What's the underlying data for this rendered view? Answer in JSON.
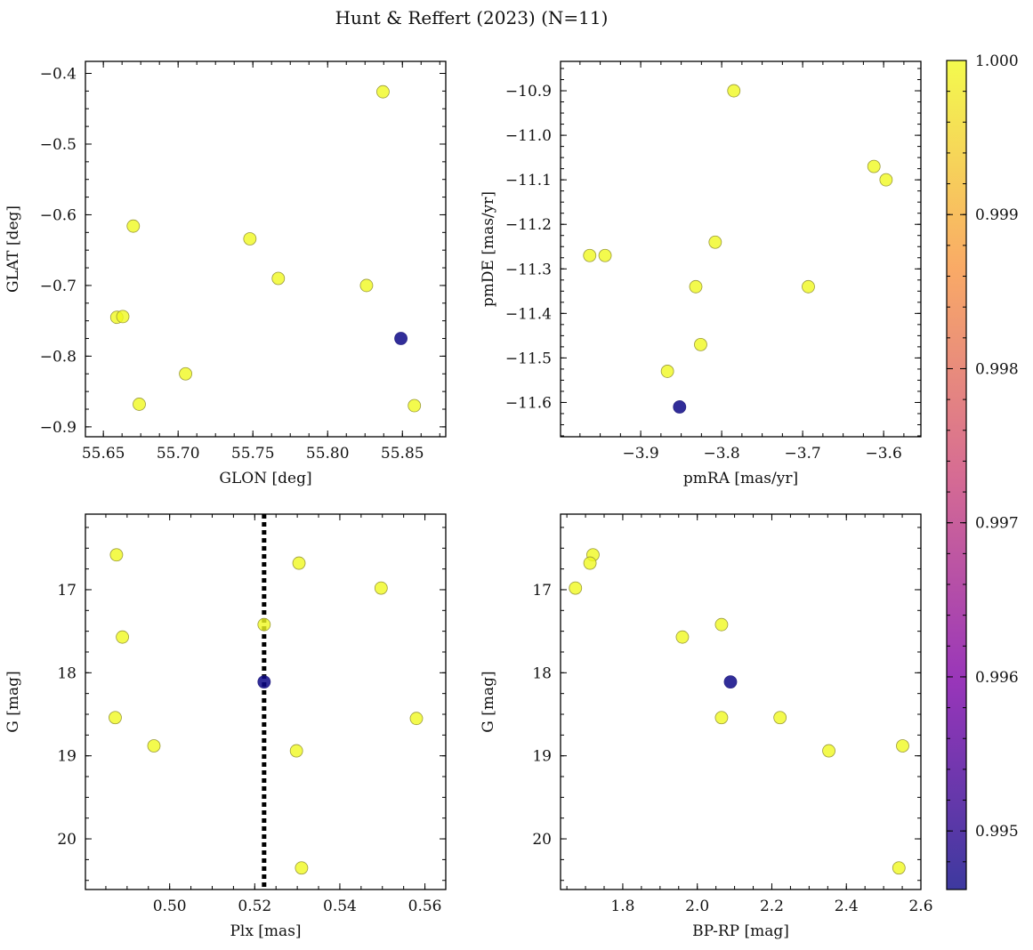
{
  "title": "Hunt & Reffert (2023) (N=11)",
  "colorbar": {
    "ticks": [
      0.995,
      0.996,
      0.997,
      0.998,
      0.999,
      1.0
    ],
    "tick_labels": [
      "0.995",
      "0.996",
      "0.997",
      "0.998",
      "0.999",
      "1.000"
    ],
    "range": [
      0.99462,
      1.0
    ],
    "colormap": [
      "#0d0887",
      "#7e03a8",
      "#cc4778",
      "#f89540",
      "#f0f921"
    ]
  },
  "colors": {
    "high": "#f0f921",
    "low": "#1f1b8f",
    "marker_edge": "#9a9a3a",
    "parallax_line": "#000000"
  },
  "chart_data": [
    {
      "type": "scatter",
      "name": "glon-glat",
      "xlabel": "GLON [deg]",
      "ylabel": "GLAT [deg]",
      "xlim": [
        55.638,
        55.879
      ],
      "ylim": [
        -0.914,
        -0.383
      ],
      "y_inverted": false,
      "x_ticks": [
        55.65,
        55.7,
        55.75,
        55.8,
        55.85
      ],
      "x_tick_labels": [
        "55.65",
        "55.70",
        "55.75",
        "55.80",
        "55.85"
      ],
      "y_ticks": [
        -0.4,
        -0.5,
        -0.6,
        -0.7,
        -0.8,
        -0.9
      ],
      "y_tick_labels": [
        "−0.4",
        "−0.5",
        "−0.6",
        "−0.7",
        "−0.8",
        "−0.9"
      ],
      "points": [
        {
          "x": 55.837,
          "y": -0.426,
          "p": 1.0
        },
        {
          "x": 55.67,
          "y": -0.616,
          "p": 1.0
        },
        {
          "x": 55.748,
          "y": -0.634,
          "p": 1.0
        },
        {
          "x": 55.767,
          "y": -0.69,
          "p": 1.0
        },
        {
          "x": 55.826,
          "y": -0.7,
          "p": 1.0
        },
        {
          "x": 55.659,
          "y": -0.745,
          "p": 1.0
        },
        {
          "x": 55.663,
          "y": -0.744,
          "p": 1.0
        },
        {
          "x": 55.849,
          "y": -0.775,
          "p": 0.99462
        },
        {
          "x": 55.705,
          "y": -0.825,
          "p": 1.0
        },
        {
          "x": 55.674,
          "y": -0.868,
          "p": 1.0
        },
        {
          "x": 55.858,
          "y": -0.87,
          "p": 1.0
        }
      ]
    },
    {
      "type": "scatter",
      "name": "pmra-pmde",
      "xlabel": "pmRA [mas/yr]",
      "ylabel": "pmDE [mas/yr]",
      "xlim": [
        -3.999,
        -3.554
      ],
      "ylim": [
        -11.677,
        -10.834
      ],
      "y_inverted": false,
      "x_ticks": [
        -3.9,
        -3.8,
        -3.7,
        -3.6
      ],
      "x_tick_labels": [
        "−3.9",
        "−3.8",
        "−3.7",
        "−3.6"
      ],
      "y_ticks": [
        -10.9,
        -11.0,
        -11.1,
        -11.2,
        -11.3,
        -11.4,
        -11.5,
        -11.6
      ],
      "y_tick_labels": [
        "−10.9",
        "−11.0",
        "−11.1",
        "−11.2",
        "−11.3",
        "−11.4",
        "−11.5",
        "−11.6"
      ],
      "points": [
        {
          "x": -3.785,
          "y": -10.9,
          "p": 1.0
        },
        {
          "x": -3.612,
          "y": -11.07,
          "p": 1.0
        },
        {
          "x": -3.597,
          "y": -11.1,
          "p": 1.0
        },
        {
          "x": -3.808,
          "y": -11.24,
          "p": 1.0
        },
        {
          "x": -3.963,
          "y": -11.27,
          "p": 1.0
        },
        {
          "x": -3.944,
          "y": -11.27,
          "p": 1.0
        },
        {
          "x": -3.832,
          "y": -11.34,
          "p": 1.0
        },
        {
          "x": -3.693,
          "y": -11.34,
          "p": 1.0
        },
        {
          "x": -3.826,
          "y": -11.47,
          "p": 1.0
        },
        {
          "x": -3.867,
          "y": -11.53,
          "p": 1.0
        },
        {
          "x": -3.852,
          "y": -11.61,
          "p": 0.99462
        }
      ]
    },
    {
      "type": "scatter",
      "name": "plx-g",
      "xlabel": "Plx [mas]",
      "ylabel": "G [mag]",
      "xlim": [
        0.4802,
        0.5649
      ],
      "ylim": [
        16.09,
        20.61
      ],
      "y_inverted": true,
      "x_ticks": [
        0.5,
        0.52,
        0.54,
        0.56
      ],
      "x_tick_labels": [
        "0.50",
        "0.52",
        "0.54",
        "0.56"
      ],
      "y_ticks": [
        17,
        18,
        19,
        20
      ],
      "y_tick_labels": [
        "17",
        "18",
        "19",
        "20"
      ],
      "vline": {
        "x": 0.5222,
        "style": "dotted"
      },
      "points": [
        {
          "x": 0.4875,
          "y": 16.58,
          "p": 1.0
        },
        {
          "x": 0.5304,
          "y": 16.68,
          "p": 1.0
        },
        {
          "x": 0.5497,
          "y": 16.98,
          "p": 1.0
        },
        {
          "x": 0.5222,
          "y": 17.42,
          "p": 1.0
        },
        {
          "x": 0.4889,
          "y": 17.57,
          "p": 1.0
        },
        {
          "x": 0.5222,
          "y": 18.11,
          "p": 0.99462
        },
        {
          "x": 0.4872,
          "y": 18.54,
          "p": 1.0
        },
        {
          "x": 0.558,
          "y": 18.55,
          "p": 1.0
        },
        {
          "x": 0.4963,
          "y": 18.88,
          "p": 1.0
        },
        {
          "x": 0.5298,
          "y": 18.94,
          "p": 1.0
        },
        {
          "x": 0.531,
          "y": 20.35,
          "p": 1.0
        }
      ]
    },
    {
      "type": "scatter",
      "name": "bprp-g",
      "xlabel": "BP-RP [mag]",
      "ylabel": "G [mag]",
      "xlim": [
        1.633,
        2.6
      ],
      "ylim": [
        16.09,
        20.61
      ],
      "y_inverted": true,
      "x_ticks": [
        1.8,
        2.0,
        2.2,
        2.4,
        2.6
      ],
      "x_tick_labels": [
        "1.8",
        "2.0",
        "2.2",
        "2.4",
        "2.6"
      ],
      "y_ticks": [
        17,
        18,
        19,
        20
      ],
      "y_tick_labels": [
        "17",
        "18",
        "19",
        "20"
      ],
      "points": [
        {
          "x": 1.72,
          "y": 16.58,
          "p": 1.0
        },
        {
          "x": 1.712,
          "y": 16.68,
          "p": 1.0
        },
        {
          "x": 1.673,
          "y": 16.98,
          "p": 1.0
        },
        {
          "x": 2.065,
          "y": 17.42,
          "p": 1.0
        },
        {
          "x": 1.96,
          "y": 17.57,
          "p": 1.0
        },
        {
          "x": 2.089,
          "y": 18.11,
          "p": 0.99462
        },
        {
          "x": 2.065,
          "y": 18.54,
          "p": 1.0
        },
        {
          "x": 2.222,
          "y": 18.54,
          "p": 1.0
        },
        {
          "x": 2.551,
          "y": 18.88,
          "p": 1.0
        },
        {
          "x": 2.353,
          "y": 18.94,
          "p": 1.0
        },
        {
          "x": 2.541,
          "y": 20.35,
          "p": 1.0
        }
      ]
    }
  ]
}
